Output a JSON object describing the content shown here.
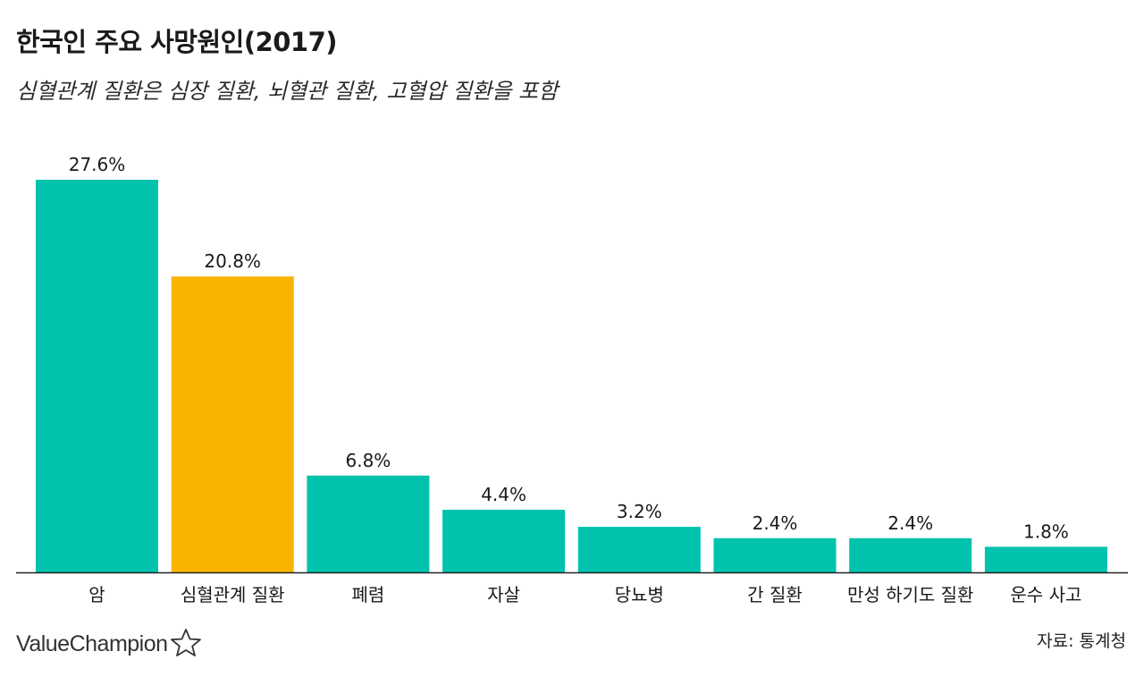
{
  "header": {
    "title": "한국인 주요 사망원인(2017)",
    "subtitle": "심혈관계 질환은 심장 질환, 뇌혈관 질환, 고혈압 질환을 포함"
  },
  "footer": {
    "logo_text": "ValueChampion",
    "logo_icon": "star-outline-icon",
    "source": "자료: 통계청"
  },
  "colors": {
    "default_bar": "#00c2ad",
    "highlight_bar": "#f8b400",
    "axis": "#222222",
    "text": "#1a1a1a"
  },
  "chart_data": {
    "type": "bar",
    "title": "한국인 주요 사망원인(2017)",
    "subtitle": "심혈관계 질환은 심장 질환, 뇌혈관 질환, 고혈압 질환을 포함",
    "categories": [
      "암",
      "심혈관계 질환",
      "폐렴",
      "자살",
      "당뇨병",
      "간 질환",
      "만성 하기도 질환",
      "운수 사고"
    ],
    "values": [
      27.6,
      20.8,
      6.8,
      4.4,
      3.2,
      2.4,
      2.4,
      1.8
    ],
    "data_labels": [
      "27.6%",
      "20.8%",
      "6.8%",
      "4.4%",
      "3.2%",
      "2.4%",
      "2.4%",
      "1.8%"
    ],
    "highlight_index": 1,
    "unit": "%",
    "xlabel": "",
    "ylabel": "",
    "ylim": [
      0,
      27.6
    ],
    "grid": false,
    "legend": "none"
  }
}
